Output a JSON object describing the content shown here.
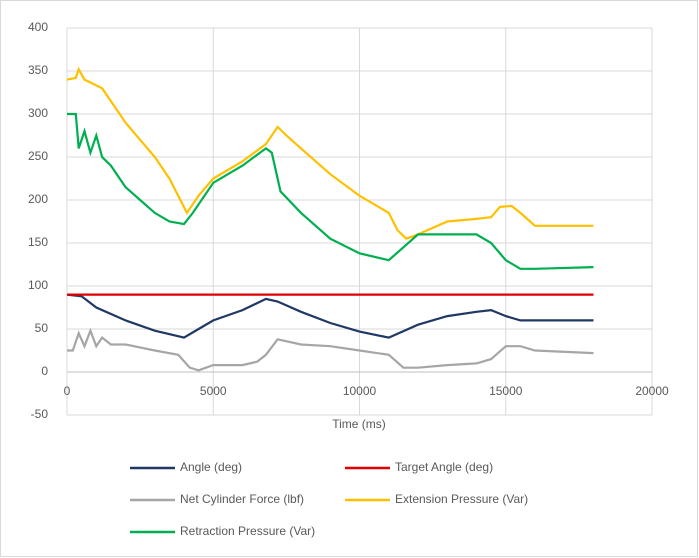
{
  "chart_data": {
    "type": "line",
    "x_label": "Time (ms)",
    "xlim": [
      0,
      20000
    ],
    "xticks": [
      0,
      5000,
      10000,
      15000,
      20000
    ],
    "ylim": [
      -50,
      400
    ],
    "yticks": [
      -50,
      0,
      50,
      100,
      150,
      200,
      250,
      300,
      350,
      400
    ],
    "grid": true,
    "legend": "bottom",
    "series": [
      {
        "name": "Angle (deg)",
        "color": "#203864",
        "x": [
          0,
          500,
          1000,
          2000,
          3000,
          4000,
          4500,
          5000,
          6000,
          6800,
          7200,
          8000,
          9000,
          10000,
          11000,
          12000,
          13000,
          14000,
          14500,
          15000,
          15500,
          16000,
          18000
        ],
        "values": [
          90,
          88,
          75,
          60,
          48,
          40,
          50,
          60,
          72,
          85,
          82,
          70,
          57,
          47,
          40,
          55,
          65,
          70,
          72,
          65,
          60,
          60,
          60
        ]
      },
      {
        "name": "Target Angle (deg)",
        "color": "#e00000",
        "x": [
          0,
          18000
        ],
        "values": [
          90,
          90
        ]
      },
      {
        "name": "Net Cylinder Force (lbf)",
        "color": "#a6a6a6",
        "x": [
          0,
          200,
          400,
          600,
          800,
          1000,
          1200,
          1500,
          2000,
          3000,
          3800,
          4200,
          4500,
          5000,
          6000,
          6500,
          6800,
          7200,
          8000,
          9000,
          10000,
          11000,
          11500,
          12000,
          13000,
          14000,
          14500,
          15000,
          15500,
          16000,
          18000
        ],
        "values": [
          25,
          25,
          45,
          30,
          48,
          30,
          40,
          32,
          32,
          25,
          20,
          5,
          2,
          8,
          8,
          12,
          20,
          38,
          32,
          30,
          25,
          20,
          5,
          5,
          8,
          10,
          15,
          30,
          30,
          25,
          22
        ]
      },
      {
        "name": "Extension Pressure (Var)",
        "color": "#ffc000",
        "x": [
          0,
          300,
          400,
          600,
          900,
          1200,
          1500,
          2000,
          2500,
          3000,
          3500,
          3800,
          4100,
          4500,
          5000,
          6000,
          6800,
          7200,
          7500,
          8000,
          9000,
          10000,
          11000,
          11300,
          11600,
          12000,
          13000,
          14000,
          14500,
          14800,
          15200,
          15500,
          16000,
          18000
        ],
        "values": [
          340,
          342,
          352,
          340,
          335,
          330,
          315,
          290,
          270,
          250,
          225,
          205,
          185,
          205,
          225,
          245,
          265,
          285,
          275,
          260,
          230,
          205,
          185,
          165,
          155,
          160,
          175,
          178,
          180,
          192,
          193,
          185,
          170,
          170
        ]
      },
      {
        "name": "Retraction Pressure (Var)",
        "color": "#00b050",
        "x": [
          0,
          300,
          400,
          600,
          800,
          1000,
          1200,
          1500,
          2000,
          2500,
          3000,
          3500,
          4000,
          4300,
          5000,
          6000,
          6800,
          7000,
          7300,
          8000,
          9000,
          10000,
          11000,
          11500,
          12000,
          13000,
          14000,
          14500,
          15000,
          15500,
          16000,
          18000
        ],
        "values": [
          300,
          300,
          260,
          280,
          255,
          275,
          250,
          240,
          215,
          200,
          185,
          175,
          172,
          185,
          220,
          240,
          260,
          255,
          210,
          185,
          155,
          138,
          130,
          145,
          160,
          160,
          160,
          150,
          130,
          120,
          120,
          122
        ]
      }
    ]
  }
}
